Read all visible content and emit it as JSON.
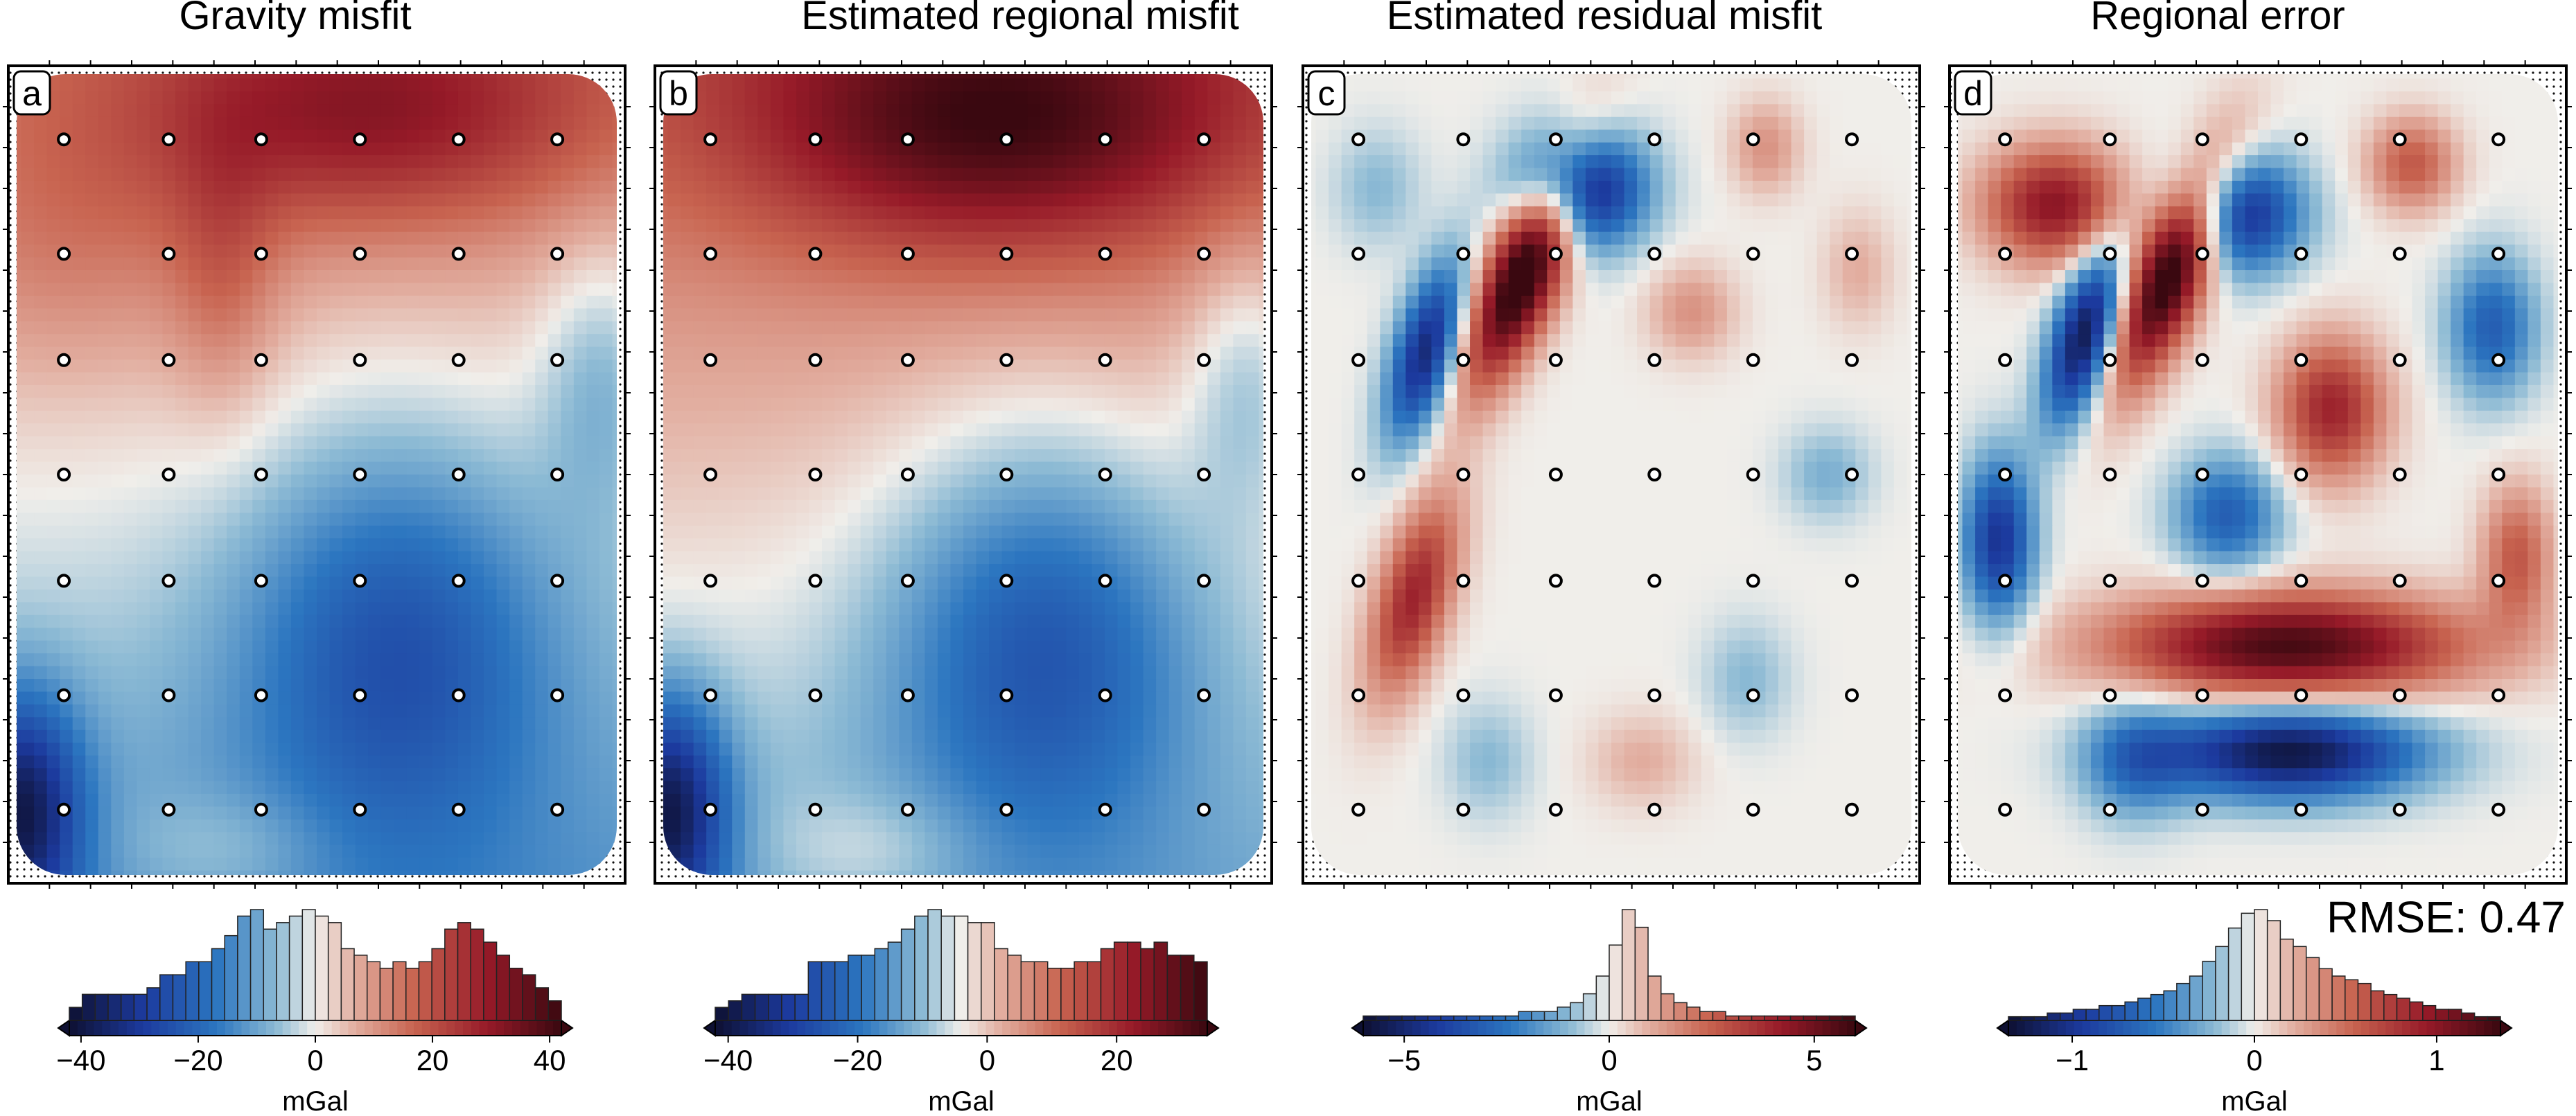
{
  "rmse_label": "RMSE: 0.47",
  "chart_data": [
    {
      "type": "heatmap",
      "title": "Gravity misfit",
      "panel_label": "a",
      "colorbar": {
        "label": "mGal",
        "range": [
          -42,
          42
        ],
        "ticks": [
          -40,
          -20,
          0,
          20,
          40
        ],
        "tick_labels": [
          "−40",
          "−20",
          "0",
          "20",
          "40"
        ],
        "histogram_counts": [
          2,
          4,
          4,
          4,
          4,
          4,
          5,
          7,
          7,
          9,
          9,
          11,
          13,
          16,
          17,
          14,
          15,
          16,
          17,
          16,
          15,
          11,
          10,
          9,
          8,
          9,
          8,
          9,
          11,
          14,
          15,
          14,
          12,
          10,
          8,
          7,
          5,
          3
        ]
      },
      "field": {
        "base": 0,
        "background_gradient": [
          13,
          -12
        ],
        "blobs": [
          {
            "x": 0.58,
            "y": 0.06,
            "sx": 0.27,
            "sy": 0.1,
            "amp": 20
          },
          {
            "x": 0.35,
            "y": 0.26,
            "sx": 0.06,
            "sy": 0.12,
            "amp": 8
          },
          {
            "x": 0.1,
            "y": 0.22,
            "sx": 0.18,
            "sy": 0.12,
            "amp": 6
          },
          {
            "x": 0.63,
            "y": 0.7,
            "sx": 0.18,
            "sy": 0.18,
            "amp": -20
          },
          {
            "x": 0.02,
            "y": 0.91,
            "sx": 0.07,
            "sy": 0.1,
            "amp": -30
          },
          {
            "x": 0.96,
            "y": 0.38,
            "sx": 0.07,
            "sy": 0.12,
            "amp": -10
          },
          {
            "x": 0.35,
            "y": 0.96,
            "sx": 0.12,
            "sy": 0.05,
            "amp": 6
          }
        ]
      }
    },
    {
      "type": "heatmap",
      "title": "Estimated regional misfit",
      "panel_label": "b",
      "colorbar": {
        "label": "mGal",
        "range": [
          -42,
          34
        ],
        "ticks": [
          -40,
          -20,
          0,
          20
        ],
        "tick_labels": [
          "−40",
          "−20",
          "0",
          "20"
        ],
        "histogram_counts": [
          2,
          3,
          4,
          4,
          4,
          4,
          4,
          9,
          9,
          9,
          10,
          10,
          11,
          12,
          14,
          16,
          17,
          16,
          16,
          15,
          15,
          11,
          10,
          9,
          9,
          8,
          8,
          9,
          9,
          11,
          12,
          12,
          11,
          12,
          10,
          10,
          9
        ]
      },
      "field": {
        "base": 0,
        "background_gradient": [
          12,
          -12
        ],
        "blobs": [
          {
            "x": 0.55,
            "y": 0.07,
            "sx": 0.28,
            "sy": 0.11,
            "amp": 24
          },
          {
            "x": 0.63,
            "y": 0.7,
            "sx": 0.18,
            "sy": 0.18,
            "amp": -20
          },
          {
            "x": 0.02,
            "y": 0.91,
            "sx": 0.07,
            "sy": 0.1,
            "amp": -30
          },
          {
            "x": 0.96,
            "y": 0.38,
            "sx": 0.07,
            "sy": 0.12,
            "amp": -10
          },
          {
            "x": 0.35,
            "y": 0.96,
            "sx": 0.12,
            "sy": 0.05,
            "amp": 6
          }
        ]
      }
    },
    {
      "type": "heatmap",
      "title": "Estimated residual misfit",
      "panel_label": "c",
      "colorbar": {
        "label": "mGal",
        "range": [
          -6,
          6
        ],
        "ticks": [
          -5,
          0,
          5
        ],
        "tick_labels": [
          "−5",
          "0",
          "5"
        ],
        "histogram_counts": [
          1,
          1,
          1,
          1,
          1,
          1,
          1,
          1,
          1,
          1,
          1,
          1,
          2,
          2,
          2,
          3,
          4,
          6,
          10,
          17,
          25,
          21,
          10,
          6,
          4,
          3,
          2,
          2,
          1,
          1,
          1,
          1,
          1,
          1,
          1,
          1,
          1,
          1
        ]
      },
      "field": {
        "base": 0,
        "background_gradient": [
          0,
          0
        ],
        "blobs": [
          {
            "x": 0.36,
            "y": 0.25,
            "sx": 0.04,
            "sy": 0.11,
            "rot": -0.55,
            "amp": 7
          },
          {
            "x": 0.2,
            "y": 0.35,
            "sx": 0.035,
            "sy": 0.08,
            "rot": -0.4,
            "amp": -5
          },
          {
            "x": 0.45,
            "y": 0.15,
            "sx": 0.07,
            "sy": 0.05,
            "amp": -6
          },
          {
            "x": 0.18,
            "y": 0.65,
            "sx": 0.04,
            "sy": 0.09,
            "rot": -0.4,
            "amp": 4
          },
          {
            "x": 0.63,
            "y": 0.3,
            "sx": 0.05,
            "sy": 0.04,
            "amp": 1.5
          },
          {
            "x": 0.75,
            "y": 0.1,
            "sx": 0.04,
            "sy": 0.04,
            "amp": 1.5
          },
          {
            "x": 0.85,
            "y": 0.5,
            "sx": 0.05,
            "sy": 0.04,
            "amp": -1.2
          },
          {
            "x": 0.55,
            "y": 0.85,
            "sx": 0.06,
            "sy": 0.04,
            "amp": 1.0
          },
          {
            "x": 0.72,
            "y": 0.75,
            "sx": 0.05,
            "sy": 0.05,
            "amp": -1.0
          },
          {
            "x": 0.3,
            "y": 0.85,
            "sx": 0.05,
            "sy": 0.05,
            "amp": -1.0
          },
          {
            "x": 0.9,
            "y": 0.25,
            "sx": 0.04,
            "sy": 0.05,
            "amp": 1.0
          },
          {
            "x": 0.12,
            "y": 0.15,
            "sx": 0.05,
            "sy": 0.05,
            "amp": -1.0
          }
        ]
      }
    },
    {
      "type": "heatmap",
      "title": "Regional error",
      "panel_label": "d",
      "colorbar": {
        "label": "mGal",
        "range": [
          -1.35,
          1.35
        ],
        "ticks": [
          -1,
          0,
          1
        ],
        "tick_labels": [
          "−1",
          "0",
          "1"
        ],
        "histogram_counts": [
          1,
          1,
          1,
          2,
          2,
          3,
          3,
          4,
          4,
          5,
          6,
          7,
          8,
          10,
          12,
          16,
          20,
          25,
          29,
          30,
          27,
          22,
          20,
          17,
          14,
          12,
          11,
          10,
          8,
          7,
          6,
          5,
          4,
          3,
          3,
          2,
          1,
          1
        ]
      },
      "field": {
        "base": 0,
        "background_gradient": [
          0,
          0
        ],
        "blobs": [
          {
            "x": 0.36,
            "y": 0.25,
            "sx": 0.04,
            "sy": 0.11,
            "rot": -0.55,
            "amp": 1.5
          },
          {
            "x": 0.22,
            "y": 0.33,
            "sx": 0.035,
            "sy": 0.08,
            "rot": -0.4,
            "amp": -1.3
          },
          {
            "x": 0.47,
            "y": 0.18,
            "sx": 0.07,
            "sy": 0.05,
            "amp": -1.1
          },
          {
            "x": 0.17,
            "y": 0.17,
            "sx": 0.08,
            "sy": 0.05,
            "amp": 1.0
          },
          {
            "x": 0.55,
            "y": 0.71,
            "sx": 0.2,
            "sy": 0.045,
            "amp": 1.3
          },
          {
            "x": 0.55,
            "y": 0.84,
            "sx": 0.15,
            "sy": 0.04,
            "amp": -1.3
          },
          {
            "x": 0.08,
            "y": 0.58,
            "sx": 0.04,
            "sy": 0.07,
            "amp": -1.0
          },
          {
            "x": 0.62,
            "y": 0.42,
            "sx": 0.06,
            "sy": 0.06,
            "amp": 0.9
          },
          {
            "x": 0.45,
            "y": 0.55,
            "sx": 0.06,
            "sy": 0.05,
            "amp": -0.7
          },
          {
            "x": 0.88,
            "y": 0.32,
            "sx": 0.05,
            "sy": 0.06,
            "amp": -0.7
          },
          {
            "x": 0.92,
            "y": 0.6,
            "sx": 0.04,
            "sy": 0.06,
            "amp": 0.6
          },
          {
            "x": 0.3,
            "y": 0.85,
            "sx": 0.06,
            "sy": 0.05,
            "amp": -0.5
          },
          {
            "x": 0.75,
            "y": 0.12,
            "sx": 0.05,
            "sy": 0.04,
            "amp": 0.6
          }
        ]
      }
    }
  ],
  "stations": {
    "columns": [
      0.09,
      0.26,
      0.41,
      0.57,
      0.73,
      0.89
    ],
    "rows": [
      0.09,
      0.23,
      0.36,
      0.5,
      0.63,
      0.77,
      0.91
    ]
  }
}
